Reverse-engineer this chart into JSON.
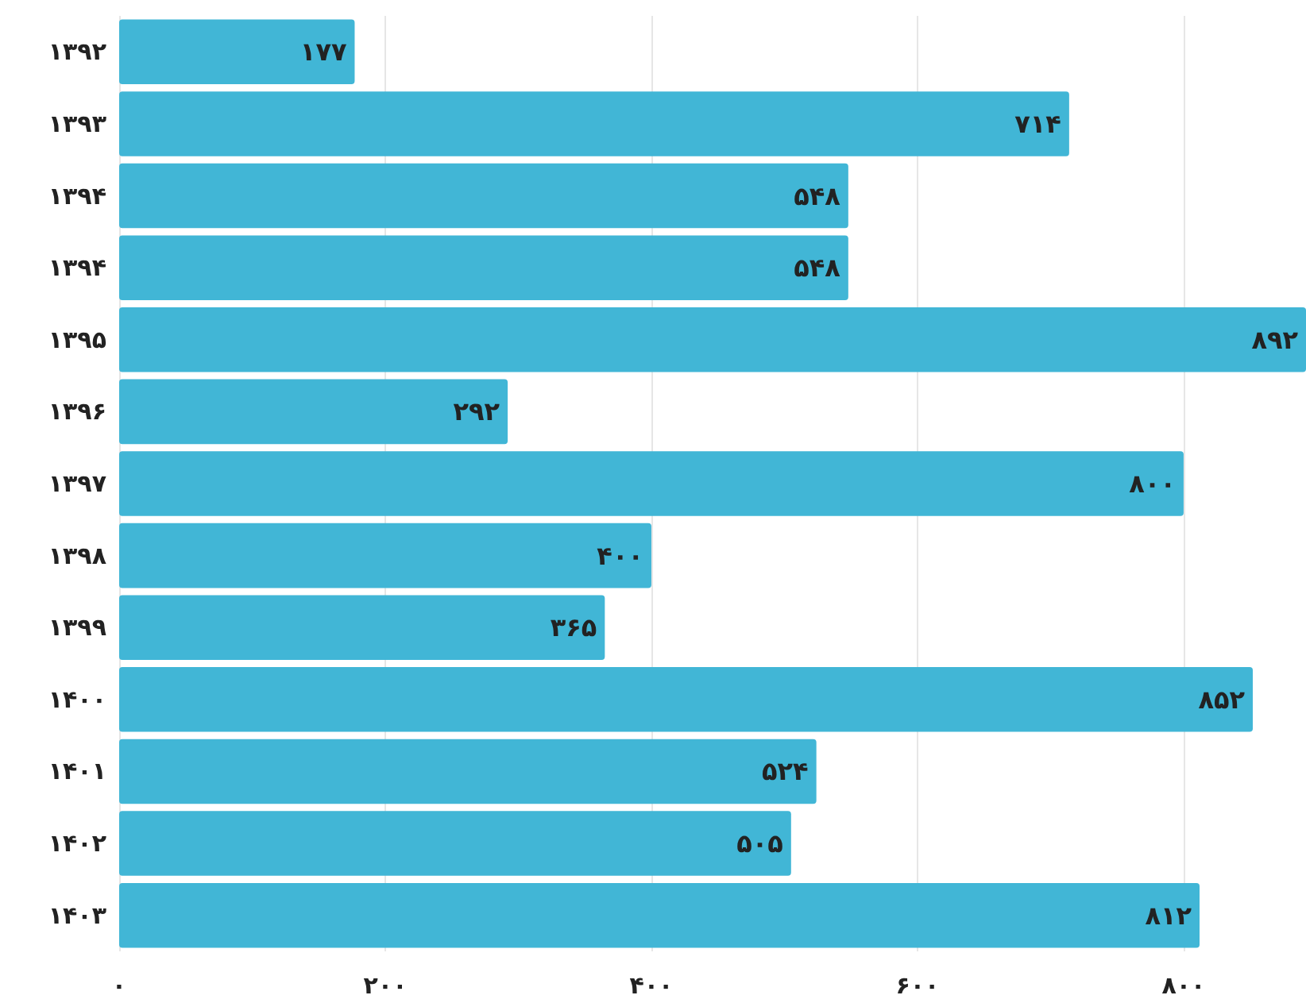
{
  "chart_data": {
    "type": "bar",
    "orientation": "horizontal",
    "categories": [
      "۱۳۹۲",
      "۱۳۹۳",
      "۱۳۹۴",
      "۱۳۹۴",
      "۱۳۹۵",
      "۱۳۹۶",
      "۱۳۹۷",
      "۱۳۹۸",
      "۱۳۹۹",
      "۱۴۰۰",
      "۱۴۰۱",
      "۱۴۰۲",
      "۱۴۰۳"
    ],
    "values": [
      177,
      714,
      548,
      548,
      892,
      292,
      800,
      400,
      365,
      852,
      524,
      505,
      812
    ],
    "value_labels": [
      "۱۷۷",
      "۷۱۴",
      "۵۴۸",
      "۵۴۸",
      "۸۹۲",
      "۲۹۲",
      "۸۰۰",
      "۴۰۰",
      "۳۶۵",
      "۸۵۲",
      "۵۲۴",
      "۵۰۵",
      "۸۱۲"
    ],
    "color": "#41b6d6",
    "xlim": [
      0,
      892
    ],
    "xticks": [
      {
        "value": 0,
        "label": "۰"
      },
      {
        "value": 200,
        "label": "۲۰۰"
      },
      {
        "value": 400,
        "label": "۴۰۰"
      },
      {
        "value": 600,
        "label": "۶۰۰"
      },
      {
        "value": 800,
        "label": "۸۰۰"
      }
    ],
    "grid": "x"
  }
}
